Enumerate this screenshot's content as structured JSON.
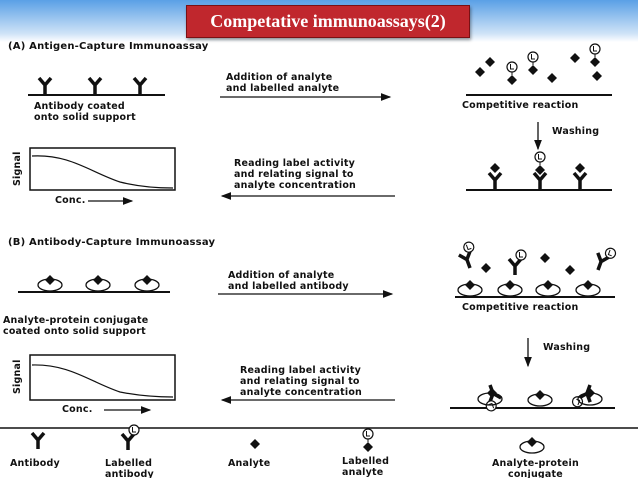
{
  "title": "Competative immunoassays(2)",
  "section_a": {
    "heading": "(A)   Antigen-Capture Immunoassay",
    "support_label": "Antibody coated\nonto solid support",
    "addition_label": "Addition of analyte\nand labelled analyte",
    "reaction_label": "Competitive reaction",
    "washing": "Washing",
    "signal": "Signal",
    "conc": "Conc.",
    "reading_label": "Reading label activity\nand relating signal to\nanalyte concentration"
  },
  "section_b": {
    "heading": "(B)   Antibody-Capture Immunoassay",
    "support_label": "Analyte-protein conjugate\ncoated onto solid support",
    "addition_label": "Addition of analyte\nand  labelled antibody",
    "reaction_label": "Competitive reaction",
    "washing": "Washing",
    "signal": "Signal",
    "conc": "Conc.",
    "reading_label": "Reading label activity\nand relating signal to\nanalyte concentration"
  },
  "legend": [
    "Antibody",
    "Labelled\nantibody",
    "Analyte",
    "Labelled\nanalyte",
    "Analyte-protein\nconjugate"
  ]
}
